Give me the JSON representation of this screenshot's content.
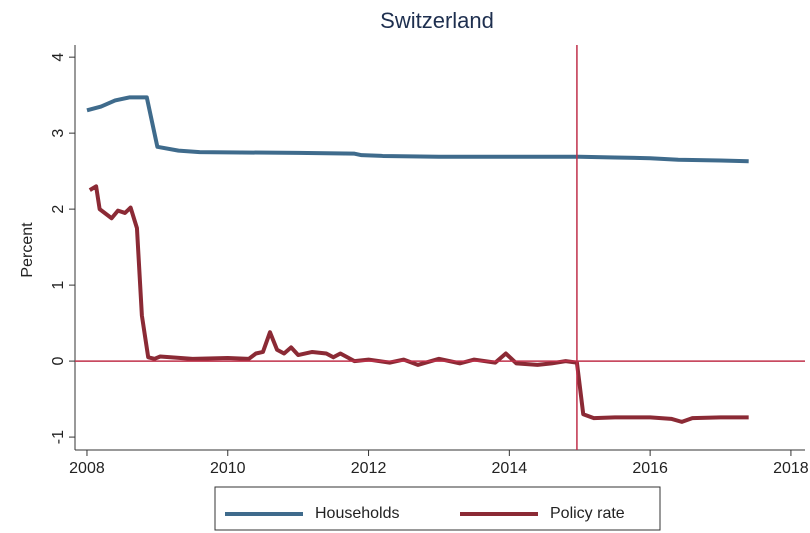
{
  "chart_data": {
    "type": "line",
    "title": "Switzerland",
    "ylabel": "Percent",
    "xlim": [
      2007.83,
      2018.2
    ],
    "xticks": [
      2008,
      2010,
      2012,
      2014,
      2016,
      2018
    ],
    "ylim": [
      -1.17,
      4.16
    ],
    "yticks": [
      -1,
      0,
      1,
      2,
      3,
      4
    ],
    "vline": 2014.96,
    "hline": 0,
    "reference_color": "#c0304a",
    "legend": "bottom",
    "series": [
      {
        "name": "Households",
        "color": "#3f6b8c",
        "x": [
          2008.0,
          2008.2,
          2008.4,
          2008.6,
          2008.85,
          2009.0,
          2009.3,
          2009.6,
          2011.0,
          2011.8,
          2011.9,
          2012.2,
          2013.0,
          2014.0,
          2015.0,
          2015.5,
          2016.0,
          2016.4,
          2017.0,
          2017.4
        ],
        "values": [
          3.3,
          3.35,
          3.43,
          3.47,
          3.47,
          2.82,
          2.77,
          2.75,
          2.74,
          2.73,
          2.71,
          2.7,
          2.69,
          2.69,
          2.69,
          2.68,
          2.67,
          2.65,
          2.64,
          2.63
        ]
      },
      {
        "name": "Policy rate",
        "color": "#8b2a35",
        "x": [
          2008.04,
          2008.13,
          2008.18,
          2008.35,
          2008.44,
          2008.54,
          2008.62,
          2008.71,
          2008.78,
          2008.87,
          2008.96,
          2009.04,
          2009.5,
          2010.0,
          2010.3,
          2010.4,
          2010.5,
          2010.6,
          2010.7,
          2010.8,
          2010.9,
          2011.0,
          2011.2,
          2011.4,
          2011.5,
          2011.6,
          2011.8,
          2012.0,
          2012.3,
          2012.5,
          2012.7,
          2013.0,
          2013.3,
          2013.5,
          2013.8,
          2013.95,
          2014.1,
          2014.4,
          2014.6,
          2014.8,
          2014.96,
          2015.05,
          2015.2,
          2015.5,
          2016.0,
          2016.3,
          2016.45,
          2016.6,
          2017.0,
          2017.4
        ],
        "values": [
          2.25,
          2.3,
          2.0,
          1.88,
          1.98,
          1.95,
          2.02,
          1.75,
          0.6,
          0.05,
          0.03,
          0.06,
          0.03,
          0.04,
          0.03,
          0.1,
          0.12,
          0.38,
          0.15,
          0.1,
          0.18,
          0.08,
          0.12,
          0.1,
          0.05,
          0.1,
          0.0,
          0.02,
          -0.02,
          0.02,
          -0.05,
          0.03,
          -0.03,
          0.02,
          -0.02,
          0.1,
          -0.03,
          -0.05,
          -0.03,
          0.0,
          -0.02,
          -0.7,
          -0.75,
          -0.74,
          -0.74,
          -0.76,
          -0.8,
          -0.75,
          -0.74,
          -0.74
        ]
      }
    ]
  }
}
